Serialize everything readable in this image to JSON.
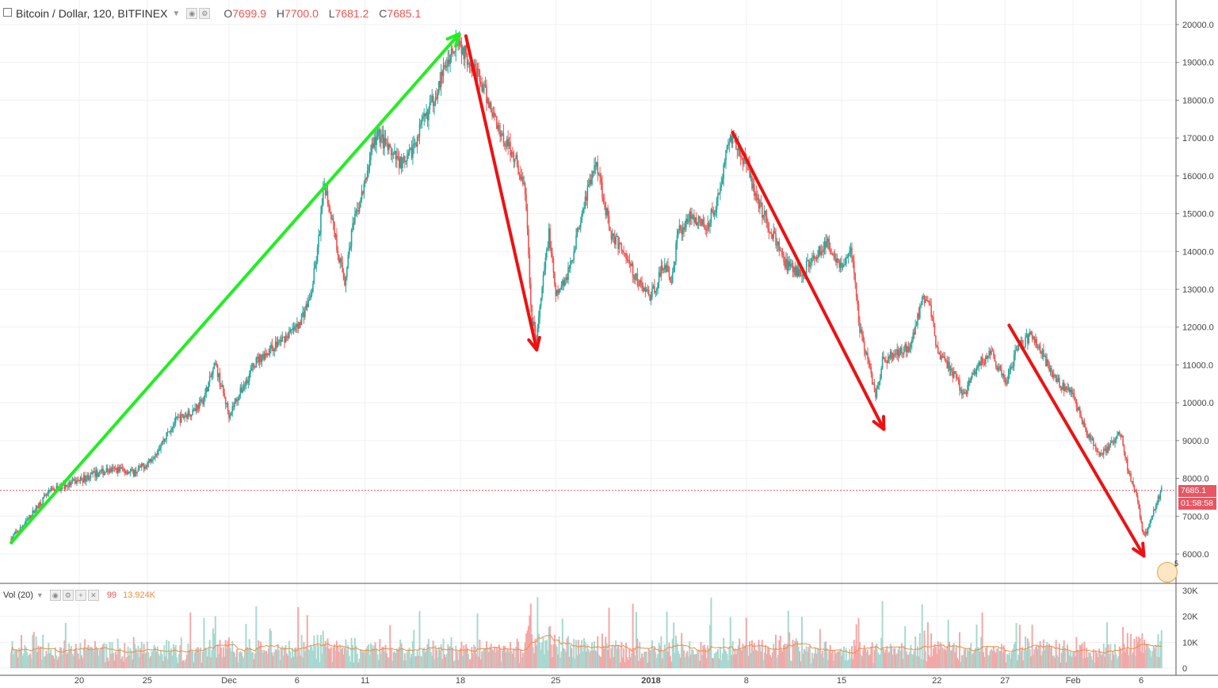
{
  "header": {
    "symbol": "Bitcoin / Dollar, 120, BITFINEX",
    "open_label": "O",
    "open": "7699.9",
    "high_label": "H",
    "high": "7700.0",
    "low_label": "L",
    "low": "7681.2",
    "close_label": "C",
    "close": "7685.1"
  },
  "volume_legend": {
    "label": "Vol (20)",
    "value": "99",
    "ma_value": "13.924K"
  },
  "price_tag": {
    "price": "7685.1",
    "countdown": "01:58:58"
  },
  "badge": {
    "count": "5"
  },
  "colors": {
    "up": "#26a69a",
    "down": "#ef5350",
    "uptrend_arrow": "#22ee22",
    "downtrend_arrow": "#ee1111",
    "vol_ma": "#f28b3c"
  },
  "chart_data": {
    "type": "candlestick",
    "price_axis": {
      "ticks": [
        "20000.0",
        "19000.0",
        "18000.0",
        "17000.0",
        "16000.0",
        "15000.0",
        "14000.0",
        "13000.0",
        "12000.0",
        "11000.0",
        "10000.0",
        "9000.0",
        "8000.0",
        "7000.0",
        "6000.0"
      ],
      "range": [
        5300,
        20200
      ]
    },
    "volume_axis": {
      "ticks": [
        "30K",
        "20K",
        "10K",
        "0"
      ],
      "range": [
        0,
        30000
      ]
    },
    "x_ticks": [
      "20",
      "25",
      "Dec",
      "6",
      "11",
      "18",
      "25",
      "2018",
      "8",
      "15",
      "22",
      "27",
      "Feb",
      "6"
    ],
    "x_tick_days": [
      5,
      10,
      16,
      21,
      26,
      33,
      40,
      47,
      54,
      61,
      68,
      73,
      78,
      83
    ],
    "x_range_days": [
      0,
      85
    ],
    "price_path": [
      [
        0.0,
        6400
      ],
      [
        1.0,
        6800
      ],
      [
        2.0,
        7300
      ],
      [
        3.0,
        7700
      ],
      [
        4.0,
        7800
      ],
      [
        5.0,
        7950
      ],
      [
        6.0,
        8100
      ],
      [
        7.0,
        8200
      ],
      [
        8.0,
        8250
      ],
      [
        9.0,
        8150
      ],
      [
        10.0,
        8400
      ],
      [
        11.0,
        8900
      ],
      [
        12.0,
        9500
      ],
      [
        13.0,
        9700
      ],
      [
        14.0,
        10000
      ],
      [
        15.0,
        11000
      ],
      [
        16.0,
        9700
      ],
      [
        17.0,
        10400
      ],
      [
        18.0,
        11100
      ],
      [
        19.0,
        11400
      ],
      [
        20.0,
        11700
      ],
      [
        21.0,
        12000
      ],
      [
        22.0,
        12800
      ],
      [
        22.5,
        14000
      ],
      [
        23.0,
        15800
      ],
      [
        23.5,
        15000
      ],
      [
        24.0,
        14000
      ],
      [
        24.5,
        13200
      ],
      [
        25.0,
        14500
      ],
      [
        26.0,
        15800
      ],
      [
        26.5,
        16800
      ],
      [
        27.0,
        17100
      ],
      [
        28.0,
        16500
      ],
      [
        29.0,
        16300
      ],
      [
        30.0,
        17200
      ],
      [
        31.0,
        18000
      ],
      [
        32.0,
        19000
      ],
      [
        32.8,
        19700
      ],
      [
        33.2,
        19300
      ],
      [
        34.0,
        18900
      ],
      [
        35.0,
        18000
      ],
      [
        36.0,
        17100
      ],
      [
        37.0,
        16500
      ],
      [
        37.8,
        15500
      ],
      [
        38.2,
        12200
      ],
      [
        38.6,
        11700
      ],
      [
        39.0,
        13000
      ],
      [
        39.5,
        14500
      ],
      [
        40.0,
        12800
      ],
      [
        41.0,
        13500
      ],
      [
        42.0,
        15200
      ],
      [
        43.0,
        16400
      ],
      [
        44.0,
        14500
      ],
      [
        45.0,
        14000
      ],
      [
        46.0,
        13200
      ],
      [
        47.0,
        12800
      ],
      [
        48.0,
        13700
      ],
      [
        48.5,
        13200
      ],
      [
        49.0,
        14500
      ],
      [
        50.0,
        15000
      ],
      [
        51.0,
        14600
      ],
      [
        52.0,
        15500
      ],
      [
        52.6,
        16800
      ],
      [
        53.0,
        17100
      ],
      [
        54.0,
        16300
      ],
      [
        55.0,
        15200
      ],
      [
        56.0,
        14400
      ],
      [
        57.0,
        13600
      ],
      [
        58.0,
        13400
      ],
      [
        59.0,
        13900
      ],
      [
        60.0,
        14200
      ],
      [
        61.0,
        13600
      ],
      [
        61.8,
        14000
      ],
      [
        62.3,
        12000
      ],
      [
        63.0,
        11000
      ],
      [
        63.5,
        10200
      ],
      [
        64.0,
        11100
      ],
      [
        65.0,
        11300
      ],
      [
        66.0,
        11500
      ],
      [
        67.0,
        12800
      ],
      [
        67.5,
        12600
      ],
      [
        68.0,
        11400
      ],
      [
        69.0,
        10900
      ],
      [
        70.0,
        10200
      ],
      [
        71.0,
        11000
      ],
      [
        72.0,
        11300
      ],
      [
        73.0,
        10500
      ],
      [
        73.5,
        11000
      ],
      [
        74.0,
        11500
      ],
      [
        75.0,
        11800
      ],
      [
        76.0,
        11100
      ],
      [
        77.0,
        10500
      ],
      [
        78.0,
        10200
      ],
      [
        79.0,
        9200
      ],
      [
        80.0,
        8600
      ],
      [
        81.0,
        9000
      ],
      [
        81.5,
        9200
      ],
      [
        82.0,
        8300
      ],
      [
        82.7,
        7500
      ],
      [
        83.2,
        6400
      ],
      [
        83.5,
        6700
      ],
      [
        84.0,
        7200
      ],
      [
        84.5,
        7685
      ]
    ],
    "annotations": [
      {
        "type": "arrow",
        "color": "green",
        "from": [
          0.0,
          6300
        ],
        "to": [
          32.9,
          19750
        ]
      },
      {
        "type": "arrow",
        "color": "red",
        "from": [
          33.4,
          19700
        ],
        "to": [
          38.6,
          11400
        ]
      },
      {
        "type": "arrow",
        "color": "red",
        "from": [
          53.0,
          17150
        ],
        "to": [
          64.1,
          9300
        ]
      },
      {
        "type": "arrow",
        "color": "red",
        "from": [
          73.3,
          12050
        ],
        "to": [
          83.2,
          5950
        ]
      }
    ],
    "current_price": 7685.1
  }
}
